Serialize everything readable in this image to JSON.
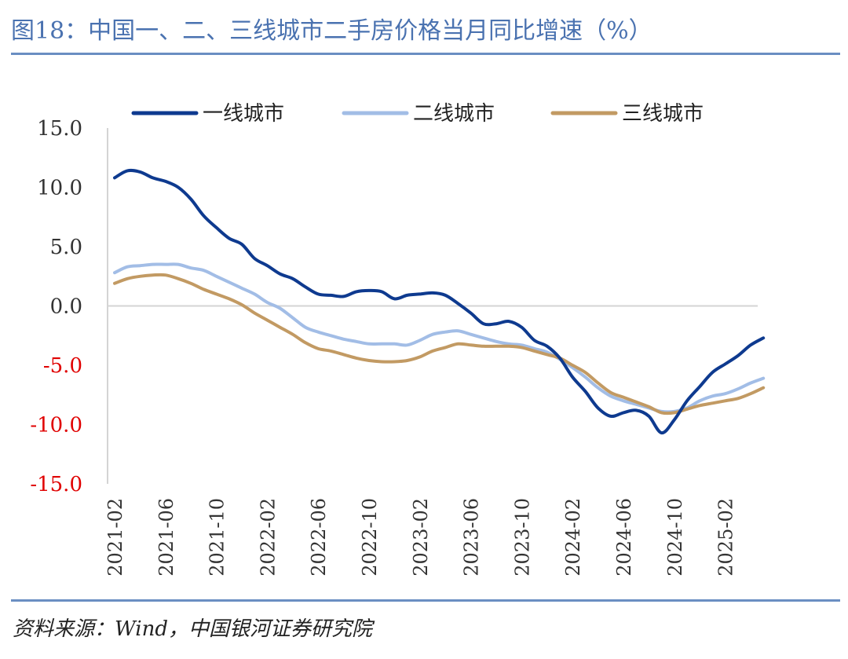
{
  "title": "图18：中国一、二、三线城市二手房价格当月同比增速（%）",
  "source": "资料来源：Wind，中国银河证券研究院",
  "colors": {
    "title": "#4a72b0",
    "rule": "#6a8ec2",
    "tier1": "#0e3a8f",
    "tier2": "#a2bde6",
    "tier3": "#c29a63",
    "negative_tick": "#e00000",
    "positive_tick": "#333333"
  },
  "chart_data": {
    "type": "line",
    "title": "图18：中国一、二、三线城市二手房价格当月同比增速（%）",
    "xlabel": "",
    "ylabel": "",
    "ylim": [
      -15,
      15
    ],
    "yticks": [
      "15.0",
      "10.0",
      "5.0",
      "0.0",
      "-5.0",
      "-10.0",
      "-15.0"
    ],
    "ytick_values": [
      15,
      10,
      5,
      0,
      -5,
      -10,
      -15
    ],
    "x": [
      "2021-02",
      "2021-03",
      "2021-04",
      "2021-05",
      "2021-06",
      "2021-07",
      "2021-08",
      "2021-09",
      "2021-10",
      "2021-11",
      "2021-12",
      "2022-01",
      "2022-02",
      "2022-03",
      "2022-04",
      "2022-05",
      "2022-06",
      "2022-07",
      "2022-08",
      "2022-09",
      "2022-10",
      "2022-11",
      "2022-12",
      "2023-01",
      "2023-02",
      "2023-03",
      "2023-04",
      "2023-05",
      "2023-06",
      "2023-07",
      "2023-08",
      "2023-09",
      "2023-10",
      "2023-11",
      "2023-12",
      "2024-01",
      "2024-02",
      "2024-03",
      "2024-04",
      "2024-05",
      "2024-06",
      "2024-07",
      "2024-08",
      "2024-09",
      "2024-10",
      "2024-11",
      "2024-12",
      "2025-01",
      "2025-02",
      "2025-03",
      "2025-04",
      "2025-05"
    ],
    "xticks": [
      "2021-02",
      "2021-06",
      "2021-10",
      "2022-02",
      "2022-06",
      "2022-10",
      "2023-02",
      "2023-06",
      "2023-10",
      "2024-02",
      "2024-06",
      "2024-10",
      "2025-02"
    ],
    "legend_position": "top",
    "grid": false,
    "series": [
      {
        "name": "一线城市",
        "color": "#0e3a8f",
        "values": [
          10.8,
          11.4,
          11.3,
          10.8,
          10.5,
          10.0,
          9.0,
          7.6,
          6.6,
          5.7,
          5.2,
          4.0,
          3.4,
          2.7,
          2.3,
          1.6,
          1.0,
          0.9,
          0.8,
          1.2,
          1.3,
          1.2,
          0.6,
          0.9,
          1.0,
          1.1,
          0.9,
          0.2,
          -0.6,
          -1.5,
          -1.5,
          -1.3,
          -1.8,
          -2.9,
          -3.4,
          -4.4,
          -6.0,
          -7.2,
          -8.6,
          -9.3,
          -9.0,
          -8.8,
          -9.3,
          -10.7,
          -9.6,
          -8.0,
          -6.8,
          -5.6,
          -4.9,
          -4.2,
          -3.3,
          -2.7
        ]
      },
      {
        "name": "二线城市",
        "color": "#a2bde6",
        "values": [
          2.8,
          3.3,
          3.4,
          3.5,
          3.5,
          3.5,
          3.2,
          3.0,
          2.5,
          2.0,
          1.5,
          1.0,
          0.3,
          -0.2,
          -1.0,
          -1.8,
          -2.2,
          -2.5,
          -2.8,
          -3.0,
          -3.2,
          -3.2,
          -3.2,
          -3.3,
          -2.9,
          -2.4,
          -2.2,
          -2.1,
          -2.4,
          -2.7,
          -3.0,
          -3.2,
          -3.3,
          -3.6,
          -3.9,
          -4.5,
          -5.2,
          -6.0,
          -6.9,
          -7.6,
          -8.0,
          -8.3,
          -8.6,
          -8.9,
          -8.9,
          -8.6,
          -8.0,
          -7.6,
          -7.4,
          -7.0,
          -6.5,
          -6.1
        ]
      },
      {
        "name": "三线城市",
        "color": "#c29a63",
        "values": [
          1.9,
          2.3,
          2.5,
          2.6,
          2.6,
          2.3,
          1.9,
          1.4,
          1.0,
          0.6,
          0.1,
          -0.6,
          -1.2,
          -1.8,
          -2.4,
          -3.1,
          -3.6,
          -3.8,
          -4.1,
          -4.4,
          -4.6,
          -4.7,
          -4.7,
          -4.6,
          -4.3,
          -3.8,
          -3.5,
          -3.2,
          -3.3,
          -3.4,
          -3.4,
          -3.4,
          -3.5,
          -3.8,
          -4.1,
          -4.4,
          -5.0,
          -5.6,
          -6.5,
          -7.3,
          -7.7,
          -8.1,
          -8.5,
          -9.0,
          -9.0,
          -8.7,
          -8.4,
          -8.2,
          -8.0,
          -7.8,
          -7.4,
          -6.9
        ]
      }
    ]
  }
}
